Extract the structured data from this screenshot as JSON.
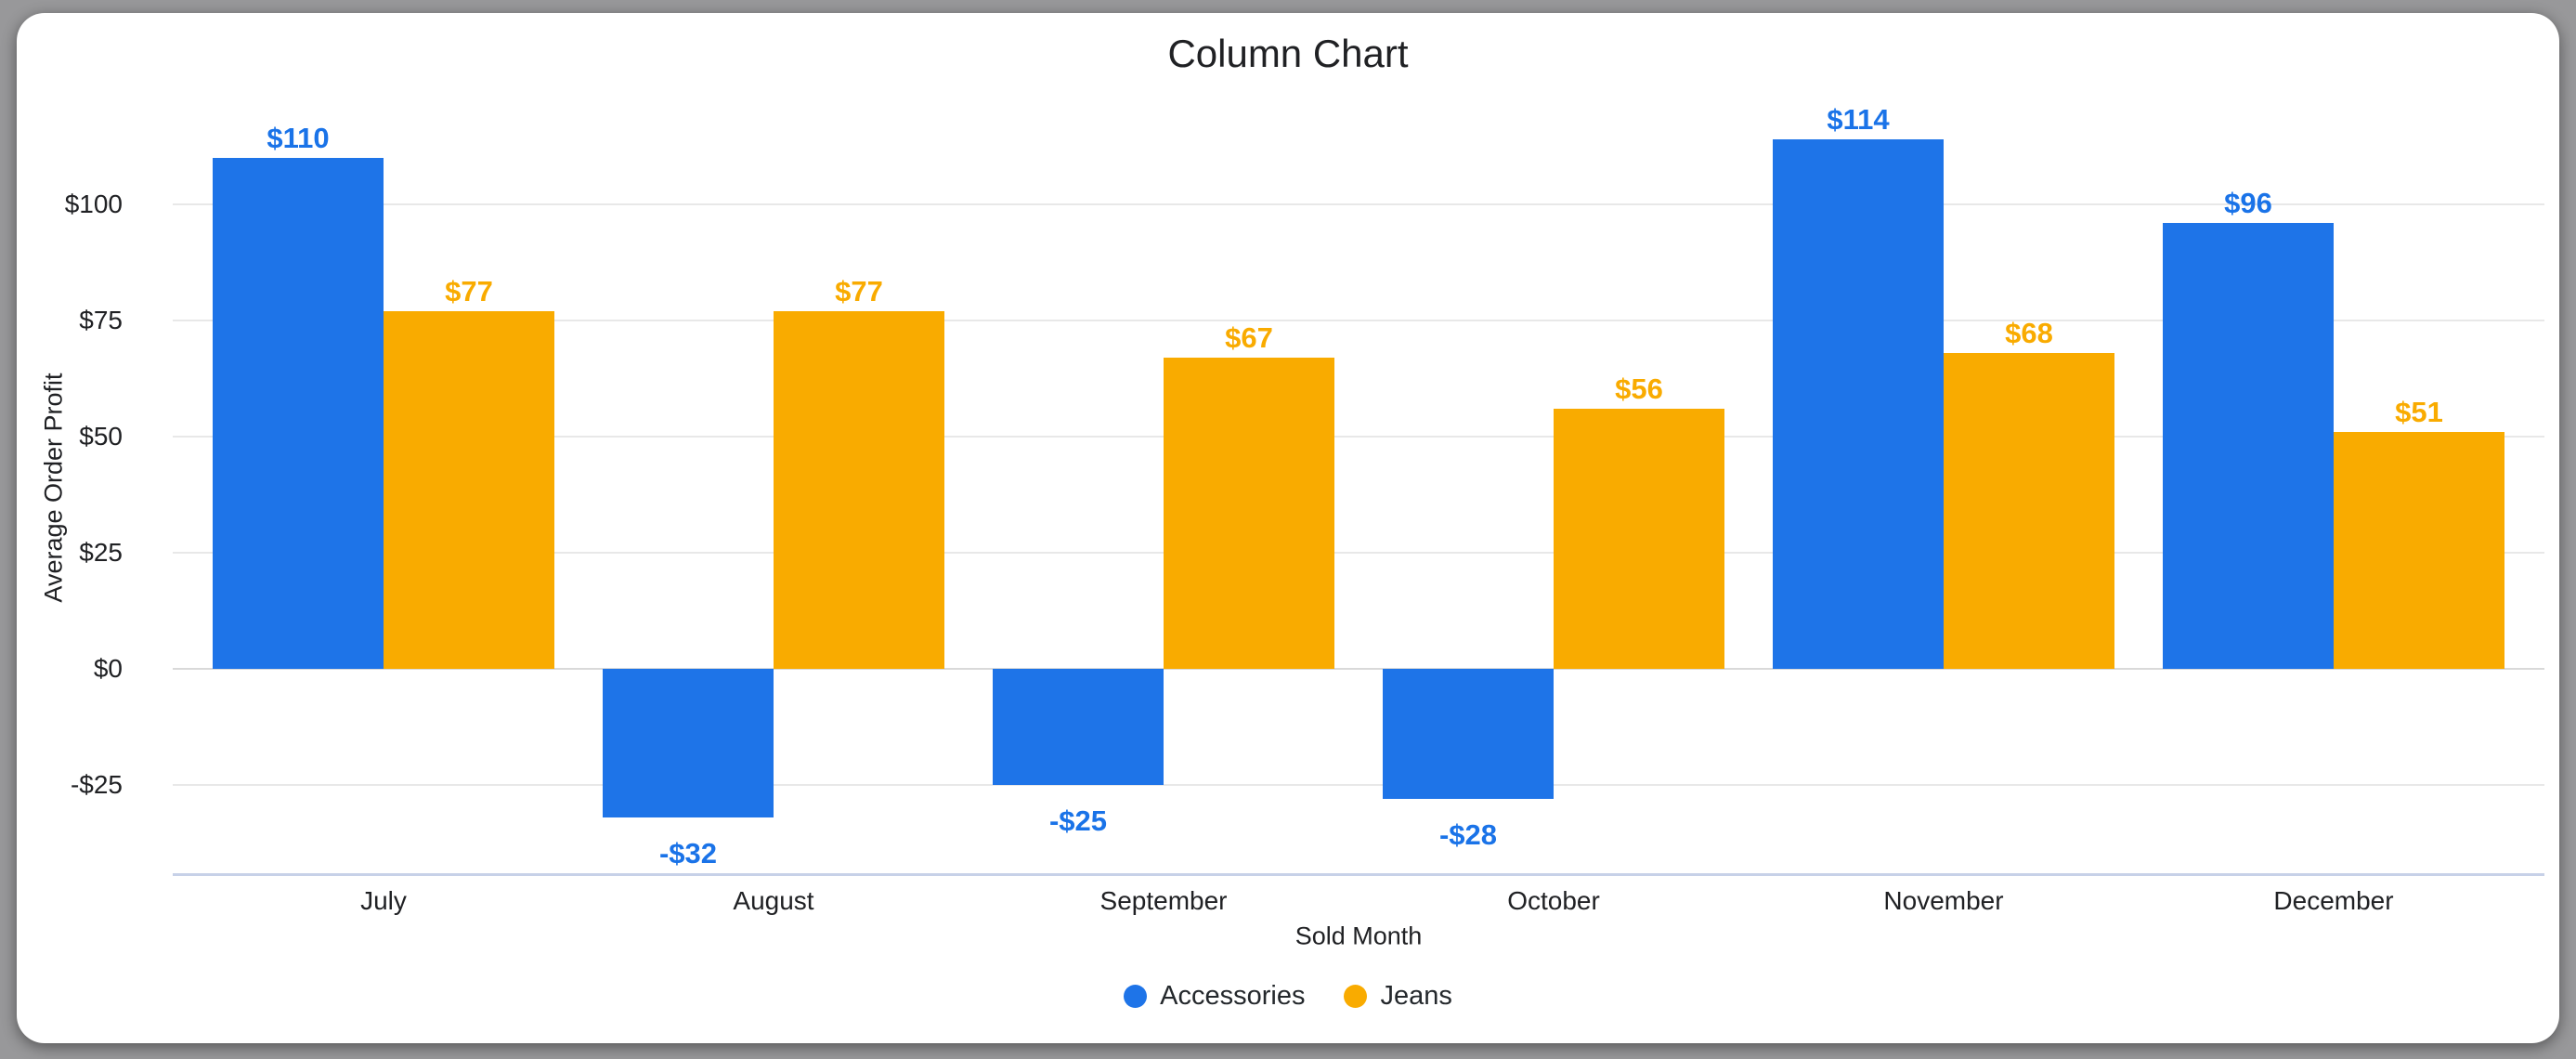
{
  "chart_data": {
    "type": "bar",
    "title": "Column Chart",
    "xlabel": "Sold Month",
    "ylabel": "Average Order Profit",
    "categories": [
      "July",
      "August",
      "September",
      "October",
      "November",
      "December"
    ],
    "series": [
      {
        "name": "Accessories",
        "color": "#1e74e8",
        "label_color": "#1a73e8",
        "values": [
          110,
          -32,
          -25,
          -28,
          114,
          96
        ],
        "labels": [
          "$110",
          "-$32",
          "-$25",
          "-$28",
          "$114",
          "$96"
        ]
      },
      {
        "name": "Jeans",
        "color": "#f9ab00",
        "label_color": "#f9ab00",
        "values": [
          77,
          77,
          67,
          56,
          68,
          51
        ],
        "labels": [
          "$77",
          "$77",
          "$67",
          "$56",
          "$68",
          "$51"
        ]
      }
    ],
    "yticks": [
      {
        "v": 100,
        "label": "$100"
      },
      {
        "v": 75,
        "label": "$75"
      },
      {
        "v": 50,
        "label": "$50"
      },
      {
        "v": 25,
        "label": "$25"
      },
      {
        "v": 0,
        "label": "$0"
      },
      {
        "v": -25,
        "label": "-$25"
      }
    ],
    "ylim": [
      -44,
      118
    ],
    "grid": true,
    "legend_position": "bottom"
  }
}
